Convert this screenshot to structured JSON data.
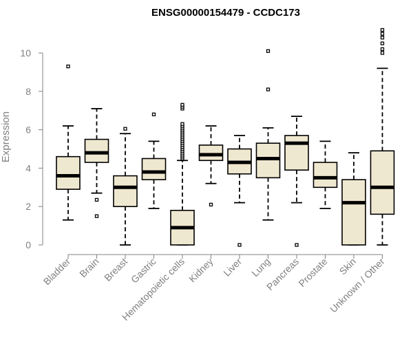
{
  "chart_data": {
    "type": "boxplot",
    "title": "ENSG00000154479 - CCDC173",
    "ylabel": "Expression",
    "xlabel": "",
    "ylim": [
      0,
      11.2
    ],
    "yticks": [
      0,
      2,
      4,
      6,
      8,
      10
    ],
    "grid": false,
    "legend": "none",
    "colors": {
      "box_fill": "#efe8d0",
      "stroke": "#000000",
      "axis_text": "#808080"
    },
    "categories": [
      "Bladder",
      "Brain",
      "Breast",
      "Gastric",
      "Hematopoietic cells",
      "Kidney",
      "Liver",
      "Lung",
      "Pancreas",
      "Prostate",
      "Skin",
      "Unknown / Other"
    ],
    "boxes": [
      {
        "category": "Bladder",
        "whisker_low": 1.3,
        "q1": 2.9,
        "median": 3.6,
        "q3": 4.6,
        "whisker_high": 6.2,
        "outliers": [
          9.3
        ]
      },
      {
        "category": "Brain",
        "whisker_low": 2.7,
        "q1": 4.3,
        "median": 4.8,
        "q3": 5.5,
        "whisker_high": 7.1,
        "outliers": [
          2.35,
          1.5
        ]
      },
      {
        "category": "Breast",
        "whisker_low": 0.0,
        "q1": 2.0,
        "median": 3.0,
        "q3": 3.6,
        "whisker_high": 5.8,
        "outliers": [
          6.05
        ]
      },
      {
        "category": "Gastric",
        "whisker_low": 1.9,
        "q1": 3.4,
        "median": 3.8,
        "q3": 4.5,
        "whisker_high": 5.4,
        "outliers": [
          6.8
        ]
      },
      {
        "category": "Hematopoietic cells",
        "whisker_low": 0.0,
        "q1": 0.0,
        "median": 0.9,
        "q3": 1.8,
        "whisker_high": 4.4,
        "outliers": [
          4.5,
          4.6,
          4.7,
          4.8,
          4.9,
          5.0,
          5.1,
          5.2,
          5.3,
          5.4,
          5.5,
          5.6,
          5.7,
          5.8,
          5.9,
          6.0,
          6.1,
          6.2,
          6.3,
          7.1,
          7.2,
          7.3
        ]
      },
      {
        "category": "Kidney",
        "whisker_low": 3.2,
        "q1": 4.4,
        "median": 4.7,
        "q3": 5.2,
        "whisker_high": 6.2,
        "outliers": [
          2.1
        ]
      },
      {
        "category": "Liver",
        "whisker_low": 2.2,
        "q1": 3.7,
        "median": 4.3,
        "q3": 5.0,
        "whisker_high": 5.7,
        "outliers": [
          0.0
        ]
      },
      {
        "category": "Lung",
        "whisker_low": 1.3,
        "q1": 3.5,
        "median": 4.5,
        "q3": 5.3,
        "whisker_high": 6.1,
        "outliers": [
          8.1,
          10.1
        ]
      },
      {
        "category": "Pancreas",
        "whisker_low": 2.2,
        "q1": 3.9,
        "median": 5.3,
        "q3": 5.7,
        "whisker_high": 6.7,
        "outliers": [
          0.0
        ]
      },
      {
        "category": "Prostate",
        "whisker_low": 1.9,
        "q1": 3.0,
        "median": 3.5,
        "q3": 4.3,
        "whisker_high": 5.4,
        "outliers": []
      },
      {
        "category": "Skin",
        "whisker_low": 0.0,
        "q1": 0.0,
        "median": 2.2,
        "q3": 3.4,
        "whisker_high": 4.8,
        "outliers": []
      },
      {
        "category": "Unknown / Other",
        "whisker_low": 0.0,
        "q1": 1.6,
        "median": 3.0,
        "q3": 4.9,
        "whisker_high": 9.2,
        "outliers": [
          10.0,
          10.2,
          10.5,
          10.8,
          11.0,
          11.2
        ]
      }
    ]
  }
}
